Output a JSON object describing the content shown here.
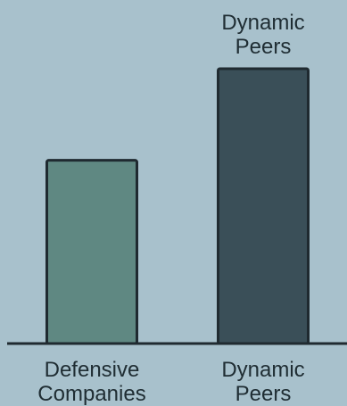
{
  "colors": {
    "background": "#a8c1cc",
    "bar_defensive": "#5f8882",
    "bar_dynamic": "#3a4f58",
    "outline": "#1f2a30",
    "text": "#1f2d33"
  },
  "chart_data": {
    "type": "bar",
    "categories": [
      "Defensive Companies",
      "Dynamic Peers"
    ],
    "category_lines": [
      [
        "Defensive",
        "Companies"
      ],
      [
        "Dynamic",
        "Peers"
      ]
    ],
    "values": [
      100,
      150
    ],
    "ylim": [
      0,
      160
    ],
    "value_labels": [
      null,
      [
        "Dynamic",
        "Peers"
      ]
    ],
    "title": "",
    "xlabel": "",
    "ylabel": "",
    "grid": false,
    "legend": "none"
  }
}
